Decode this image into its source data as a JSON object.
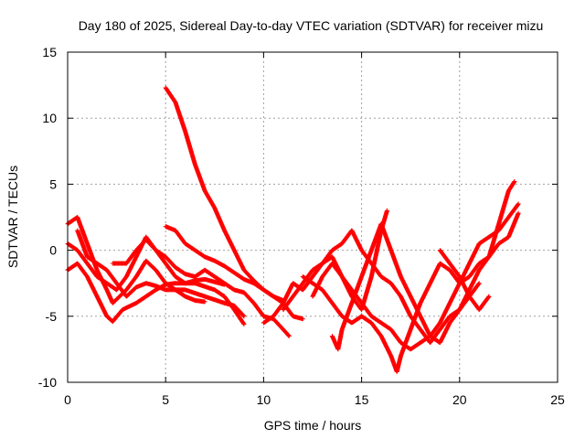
{
  "chart_data": {
    "type": "scatter",
    "title": "Day 180 of 2025, Sidereal Day-to-day VTEC variation (SDTVAR) for receiver mizu",
    "xlabel": "GPS time / hours",
    "ylabel": "SDTVAR / TECUs",
    "xlim": [
      0,
      25
    ],
    "ylim": [
      -10,
      15
    ],
    "xticks": [
      0,
      5,
      10,
      15,
      20,
      25
    ],
    "yticks": [
      -10,
      -5,
      0,
      5,
      10,
      15
    ],
    "grid": true,
    "marker": "+",
    "color": "#ff0000",
    "series": [
      {
        "name": "s1",
        "points": [
          [
            5.0,
            12.3
          ],
          [
            5.5,
            11.2
          ],
          [
            6.0,
            9.0
          ],
          [
            6.5,
            6.5
          ],
          [
            7.0,
            4.5
          ],
          [
            7.5,
            3.2
          ],
          [
            8.0,
            1.5
          ],
          [
            8.5,
            0.0
          ],
          [
            9.0,
            -1.5
          ],
          [
            9.5,
            -2.3
          ],
          [
            10.0,
            -3.0
          ],
          [
            10.5,
            -3.5
          ],
          [
            11.0,
            -3.8
          ]
        ]
      },
      {
        "name": "s2",
        "points": [
          [
            0.0,
            2.0
          ],
          [
            0.5,
            2.5
          ],
          [
            1.0,
            0.5
          ],
          [
            1.5,
            -1.5
          ],
          [
            2.0,
            -3.0
          ],
          [
            2.3,
            -4.0
          ],
          [
            3.0,
            -3.0
          ],
          [
            3.5,
            -2.0
          ],
          [
            4.0,
            -0.8
          ],
          [
            4.5,
            -1.5
          ],
          [
            5.0,
            -2.5
          ],
          [
            5.5,
            -3.0
          ],
          [
            6.0,
            -3.5
          ],
          [
            6.5,
            -3.8
          ],
          [
            7.0,
            -3.9
          ]
        ]
      },
      {
        "name": "s3",
        "points": [
          [
            0.0,
            -1.5
          ],
          [
            0.5,
            -1.0
          ],
          [
            1.0,
            -2.0
          ],
          [
            1.5,
            -3.5
          ],
          [
            2.0,
            -5.0
          ],
          [
            2.3,
            -5.4
          ],
          [
            2.8,
            -4.5
          ],
          [
            3.5,
            -4.0
          ],
          [
            4.0,
            -3.5
          ],
          [
            4.5,
            -3.0
          ],
          [
            5.0,
            -2.6
          ],
          [
            5.5,
            -2.5
          ],
          [
            6.5,
            -2.5
          ],
          [
            7.5,
            -3.0
          ],
          [
            8.0,
            -3.5
          ],
          [
            8.5,
            -4.5
          ],
          [
            9.0,
            -5.6
          ]
        ]
      },
      {
        "name": "s4",
        "points": [
          [
            0.0,
            0.5
          ],
          [
            0.5,
            0.0
          ],
          [
            1.0,
            -1.0
          ],
          [
            1.5,
            -2.0
          ],
          [
            2.0,
            -2.5
          ],
          [
            2.5,
            -3.0
          ],
          [
            3.0,
            -2.0
          ],
          [
            3.5,
            -0.5
          ],
          [
            4.0,
            1.0
          ],
          [
            4.5,
            0.0
          ],
          [
            5.0,
            -1.0
          ],
          [
            5.5,
            -2.0
          ],
          [
            6.0,
            -2.5
          ],
          [
            6.5,
            -2.3
          ],
          [
            7.0,
            -2.2
          ],
          [
            7.5,
            -2.4
          ],
          [
            8.0,
            -2.6
          ]
        ]
      },
      {
        "name": "s5",
        "points": [
          [
            0.5,
            1.5
          ],
          [
            1.0,
            -0.5
          ],
          [
            1.5,
            -1.0
          ],
          [
            2.0,
            -1.5
          ],
          [
            2.5,
            -2.5
          ],
          [
            3.0,
            -3.5
          ],
          [
            3.5,
            -2.8
          ],
          [
            4.0,
            -2.5
          ],
          [
            4.5,
            -2.7
          ],
          [
            5.0,
            -3.0
          ],
          [
            6.0,
            -3.0
          ],
          [
            7.0,
            -3.5
          ],
          [
            8.0,
            -4.0
          ],
          [
            8.5,
            -4.2
          ],
          [
            9.0,
            -5.0
          ]
        ]
      },
      {
        "name": "s6",
        "points": [
          [
            2.3,
            -1.0
          ],
          [
            3.0,
            -1.0
          ],
          [
            3.5,
            0.0
          ],
          [
            4.0,
            0.8
          ],
          [
            4.5,
            0.0
          ],
          [
            5.0,
            -0.5
          ],
          [
            5.5,
            -1.3
          ],
          [
            6.0,
            -1.8
          ],
          [
            6.5,
            -2.0
          ],
          [
            7.0,
            -1.5
          ],
          [
            7.5,
            -2.0
          ],
          [
            8.0,
            -2.5
          ],
          [
            8.5,
            -3.0
          ],
          [
            9.0,
            -3.2
          ],
          [
            9.5,
            -4.0
          ],
          [
            10.0,
            -5.0
          ],
          [
            10.5,
            -5.2
          ],
          [
            11.0,
            -6.0
          ],
          [
            11.3,
            -6.5
          ]
        ]
      },
      {
        "name": "s7",
        "points": [
          [
            5.0,
            1.8
          ],
          [
            5.5,
            1.5
          ],
          [
            6.0,
            0.5
          ],
          [
            6.5,
            0.0
          ],
          [
            7.0,
            -0.5
          ],
          [
            7.5,
            -0.8
          ],
          [
            8.0,
            -1.2
          ],
          [
            8.5,
            -1.7
          ],
          [
            9.0,
            -2.2
          ],
          [
            9.5,
            -2.5
          ],
          [
            10.0,
            -3.0
          ],
          [
            10.5,
            -3.5
          ],
          [
            11.0,
            -4.0
          ],
          [
            11.5,
            -5.0
          ],
          [
            12.0,
            -5.2
          ]
        ]
      },
      {
        "name": "s8",
        "points": [
          [
            10.0,
            -5.5
          ],
          [
            10.5,
            -5.0
          ],
          [
            11.0,
            -4.0
          ],
          [
            11.5,
            -2.5
          ],
          [
            12.0,
            -3.0
          ],
          [
            12.5,
            -2.0
          ],
          [
            13.0,
            -1.0
          ],
          [
            13.5,
            0.0
          ],
          [
            14.0,
            0.5
          ],
          [
            14.5,
            1.5
          ],
          [
            15.0,
            0.0
          ],
          [
            15.5,
            -1.0
          ],
          [
            16.0,
            -2.0
          ],
          [
            16.5,
            -2.5
          ],
          [
            17.0,
            -3.5
          ],
          [
            17.5,
            -5.0
          ],
          [
            18.0,
            -6.0
          ],
          [
            18.5,
            -7.0
          ],
          [
            19.0,
            -6.0
          ],
          [
            19.5,
            -5.0
          ],
          [
            20.0,
            -4.5
          ],
          [
            20.5,
            -3.0
          ],
          [
            21.0,
            -1.5
          ],
          [
            21.5,
            -0.5
          ],
          [
            22.0,
            0.5
          ],
          [
            22.5,
            1.0
          ],
          [
            23.0,
            2.8
          ]
        ]
      },
      {
        "name": "s9",
        "points": [
          [
            11.0,
            -4.5
          ],
          [
            11.5,
            -3.5
          ],
          [
            12.0,
            -2.5
          ],
          [
            12.5,
            -1.5
          ],
          [
            13.0,
            -1.0
          ],
          [
            13.5,
            -0.5
          ],
          [
            14.0,
            -2.0
          ],
          [
            14.5,
            -3.0
          ],
          [
            15.0,
            -4.0
          ],
          [
            15.5,
            -5.0
          ],
          [
            16.0,
            -5.5
          ],
          [
            16.5,
            -6.0
          ],
          [
            17.0,
            -7.0
          ],
          [
            17.5,
            -7.5
          ],
          [
            18.0,
            -7.0
          ],
          [
            18.5,
            -6.5
          ],
          [
            19.0,
            -5.5
          ],
          [
            19.5,
            -4.0
          ],
          [
            20.0,
            -2.5
          ],
          [
            20.5,
            -1.0
          ],
          [
            21.0,
            0.5
          ],
          [
            21.5,
            1.0
          ],
          [
            22.0,
            1.5
          ],
          [
            22.5,
            2.5
          ],
          [
            23.0,
            3.5
          ]
        ]
      },
      {
        "name": "s10",
        "points": [
          [
            12.0,
            -2.0
          ],
          [
            12.5,
            -2.5
          ],
          [
            13.0,
            -3.0
          ],
          [
            13.5,
            -4.0
          ],
          [
            14.0,
            -5.0
          ],
          [
            14.5,
            -5.5
          ],
          [
            15.0,
            -5.0
          ],
          [
            15.5,
            -5.5
          ],
          [
            16.0,
            -6.5
          ],
          [
            16.5,
            -8.0
          ],
          [
            16.8,
            -9.2
          ],
          [
            17.0,
            -8.0
          ],
          [
            17.5,
            -6.0
          ],
          [
            18.0,
            -4.0
          ],
          [
            18.5,
            -2.5
          ],
          [
            19.0,
            -1.0
          ],
          [
            19.5,
            -1.5
          ],
          [
            20.0,
            -2.5
          ],
          [
            20.5,
            -2.0
          ],
          [
            21.0,
            -1.0
          ],
          [
            21.5,
            -0.5
          ],
          [
            22.0,
            2.0
          ],
          [
            22.5,
            4.5
          ],
          [
            22.8,
            5.2
          ]
        ]
      },
      {
        "name": "s11",
        "points": [
          [
            13.5,
            -6.5
          ],
          [
            13.8,
            -7.5
          ],
          [
            14.0,
            -6.0
          ],
          [
            14.5,
            -4.0
          ],
          [
            15.0,
            -2.0
          ],
          [
            15.5,
            0.0
          ],
          [
            16.0,
            2.0
          ],
          [
            16.5,
            0.0
          ],
          [
            17.0,
            -2.0
          ],
          [
            17.5,
            -3.5
          ],
          [
            18.0,
            -5.0
          ],
          [
            18.5,
            -6.5
          ],
          [
            19.0,
            -7.0
          ],
          [
            19.5,
            -5.5
          ],
          [
            20.0,
            -4.5
          ],
          [
            20.5,
            -3.5
          ],
          [
            21.0,
            -2.5
          ]
        ]
      },
      {
        "name": "s12",
        "points": [
          [
            12.5,
            -3.5
          ],
          [
            13.0,
            -2.0
          ],
          [
            13.5,
            -1.0
          ],
          [
            14.0,
            -2.0
          ],
          [
            14.5,
            -3.5
          ],
          [
            15.0,
            -4.5
          ],
          [
            15.5,
            -2.0
          ],
          [
            16.0,
            1.5
          ],
          [
            16.3,
            3.0
          ]
        ]
      },
      {
        "name": "s13",
        "points": [
          [
            19.0,
            0.0
          ],
          [
            19.5,
            -1.0
          ],
          [
            20.0,
            -2.0
          ],
          [
            20.5,
            -3.5
          ],
          [
            21.0,
            -4.5
          ],
          [
            21.5,
            -3.5
          ]
        ]
      }
    ]
  }
}
